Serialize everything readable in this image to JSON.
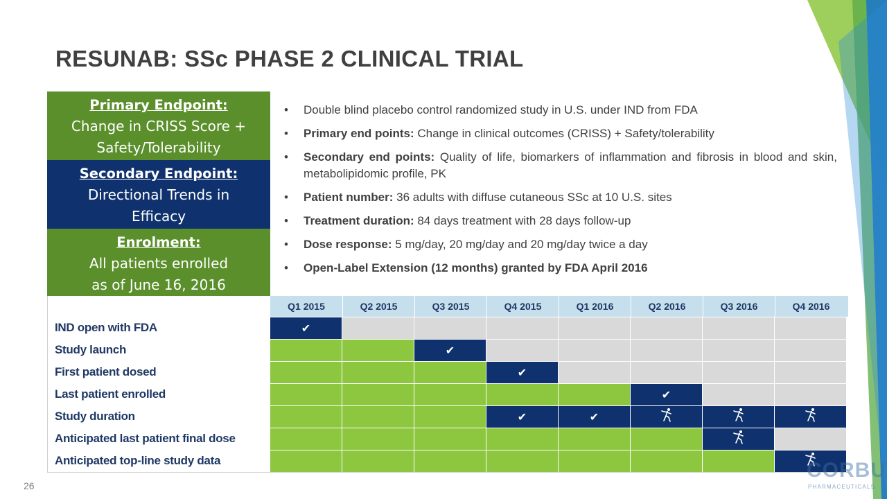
{
  "slide": {
    "title": "RESUNAB: SSc PHASE 2 CLINICAL TRIAL",
    "page_number": "26"
  },
  "endpoints": [
    {
      "heading": "Primary Endpoint:",
      "lines": [
        "Change in CRISS Score +",
        "Safety/Tolerability"
      ],
      "color": "#5a8f2b"
    },
    {
      "heading": "Secondary Endpoint:",
      "lines": [
        "Directional Trends in",
        "Efficacy"
      ],
      "color": "#0f326e"
    },
    {
      "heading": "Enrolment:",
      "lines": [
        "All patients enrolled",
        "as of June 16, 2016"
      ],
      "color": "#5a8f2b"
    }
  ],
  "bullets": [
    {
      "label": "",
      "text": "Double blind placebo control randomized study in U.S. under IND from FDA"
    },
    {
      "label": "Primary end points:",
      "text": " Change in clinical outcomes (CRISS) + Safety/tolerability"
    },
    {
      "label": "Secondary end points:",
      "text": " Quality of life, biomarkers of inflammation and fibrosis in blood and skin, metabolipidomic profile, PK"
    },
    {
      "label": "Patient number:",
      "text": " 36 adults with diffuse cutaneous SSc at 10 U.S. sites"
    },
    {
      "label": "Treatment duration:",
      "text": " 84 days treatment with 28 days follow-up"
    },
    {
      "label": "Dose response:",
      "text": " 5 mg/day, 20 mg/day and 20 mg/day twice a day"
    },
    {
      "label": "Open-Label Extension (12 months) granted by FDA April 2016",
      "text": ""
    }
  ],
  "timeline": {
    "quarters": [
      "Q1 2015",
      "Q2 2015",
      "Q3 2015",
      "Q4 2015",
      "Q1 2016",
      "Q2 2016",
      "Q3 2016",
      "Q4 2016"
    ],
    "legend_colors": {
      "elapsed": "#8dc63f",
      "milestone": "#0f326e",
      "future": "#d9d9d9"
    },
    "rows": [
      {
        "label": "IND open with FDA",
        "cells": [
          "check",
          "e",
          "e",
          "e",
          "e",
          "e",
          "e",
          "e"
        ]
      },
      {
        "label": "Study launch",
        "cells": [
          "g",
          "g",
          "check",
          "e",
          "e",
          "e",
          "e",
          "e"
        ]
      },
      {
        "label": "First patient dosed",
        "cells": [
          "g",
          "g",
          "g",
          "check",
          "e",
          "e",
          "e",
          "e"
        ]
      },
      {
        "label": "Last patient enrolled",
        "cells": [
          "g",
          "g",
          "g",
          "g",
          "g",
          "check",
          "e",
          "e"
        ]
      },
      {
        "label": "Study duration",
        "cells": [
          "g",
          "g",
          "g",
          "check",
          "check",
          "runner",
          "runner",
          "runner"
        ]
      },
      {
        "label": "Anticipated last patient final dose",
        "cells": [
          "g",
          "g",
          "g",
          "g",
          "g",
          "g",
          "runner",
          "e"
        ]
      },
      {
        "label": "Anticipated top-line study data",
        "cells": [
          "g",
          "g",
          "g",
          "g",
          "g",
          "g",
          "g",
          "runner"
        ]
      }
    ],
    "icons": {
      "check": "check-icon",
      "runner": "runner-icon"
    }
  },
  "logo": {
    "word": "CORBUS",
    "sub": "PHARMACEUTICALS"
  }
}
